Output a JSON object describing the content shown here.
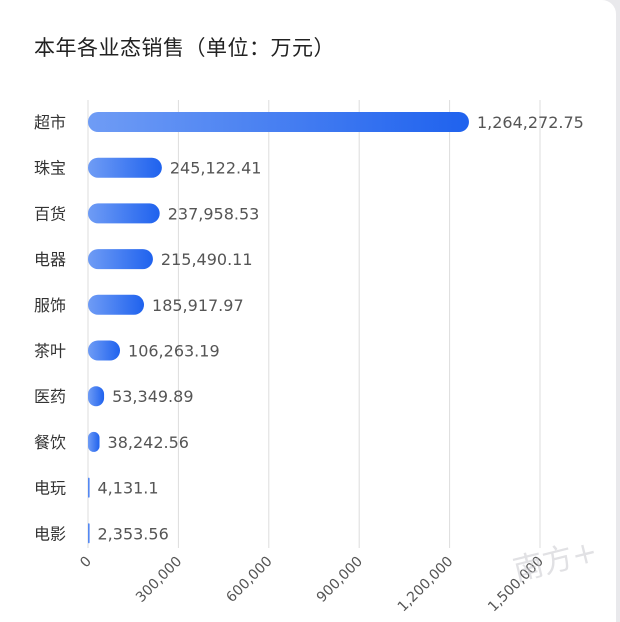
{
  "title": "本年各业态销售（单位：万元）",
  "watermark": "南方+",
  "chart_data": {
    "type": "bar",
    "orientation": "horizontal",
    "title": "本年各业态销售（单位：万元）",
    "categories": [
      "超市",
      "珠宝",
      "百货",
      "电器",
      "服饰",
      "茶叶",
      "医药",
      "餐饮",
      "电玩",
      "电影"
    ],
    "values": [
      1264272.75,
      245122.41,
      237958.53,
      215490.11,
      185917.97,
      106263.19,
      53349.89,
      38242.56,
      4131.1,
      2353.56
    ],
    "value_labels": [
      "1,264,272.75",
      "245,122.41",
      "237,958.53",
      "215,490.11",
      "185,917.97",
      "106,263.19",
      "53,349.89",
      "38,242.56",
      "4,131.1",
      "2,353.56"
    ],
    "x_ticks": [
      0,
      300000,
      600000,
      900000,
      1200000,
      1500000
    ],
    "x_tick_labels": [
      "0",
      "300,000",
      "600,000",
      "900,000",
      "1,200,000",
      "1,500,000"
    ],
    "xlim": [
      0,
      1500000
    ],
    "grid": true,
    "legend": "none",
    "colors": {
      "bar_start": "#6f9cf5",
      "bar_end": "#1f62ee",
      "grid": "#dddddd",
      "text": "#333333"
    }
  }
}
